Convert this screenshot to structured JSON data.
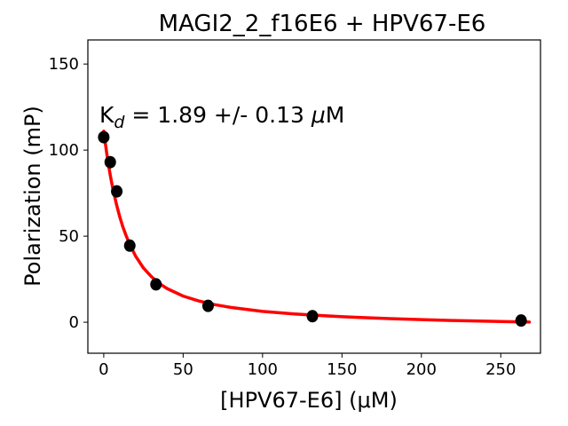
{
  "chart_data": {
    "type": "scatter",
    "title": "MAGI2_2_f16E6 + HPV67-E6",
    "xlabel": "[HPV67-E6] (μM)",
    "ylabel": "Polarization (mP)",
    "xlim": [
      -10,
      275
    ],
    "ylim": [
      -18,
      164
    ],
    "xticks": [
      0,
      50,
      100,
      150,
      200,
      250
    ],
    "yticks": [
      0,
      50,
      100,
      150
    ],
    "grid": false,
    "annotation": {
      "prefix": "K",
      "subscript": "d",
      "value_text": " = 1.89 +/- 0.13 ",
      "mu": "μ",
      "unit": "M"
    },
    "series": [
      {
        "kind": "points",
        "color": "#000000",
        "x": [
          0,
          4.1,
          8.2,
          16.4,
          32.9,
          65.7,
          131.4,
          262.8
        ],
        "y": [
          107.5,
          93,
          76,
          44.5,
          22,
          9.5,
          3.5,
          1
        ]
      },
      {
        "kind": "fit",
        "color": "#ff0000",
        "x": [
          0,
          1,
          2,
          3,
          4,
          5,
          6,
          8,
          10,
          12,
          14,
          16,
          20,
          25,
          30,
          35,
          40,
          50,
          60,
          70,
          80,
          100,
          120,
          140,
          160,
          180,
          200,
          220,
          240,
          260,
          268
        ],
        "y": [
          111,
          104,
          97.5,
          91.5,
          86,
          81,
          76.5,
          68.5,
          61.5,
          55.5,
          50.5,
          46,
          38.5,
          31.5,
          26.5,
          22.5,
          19.5,
          15.2,
          12.3,
          10.2,
          8.6,
          6.3,
          4.8,
          3.7,
          2.8,
          2.1,
          1.5,
          1.0,
          0.6,
          0.25,
          0.1
        ]
      }
    ]
  }
}
